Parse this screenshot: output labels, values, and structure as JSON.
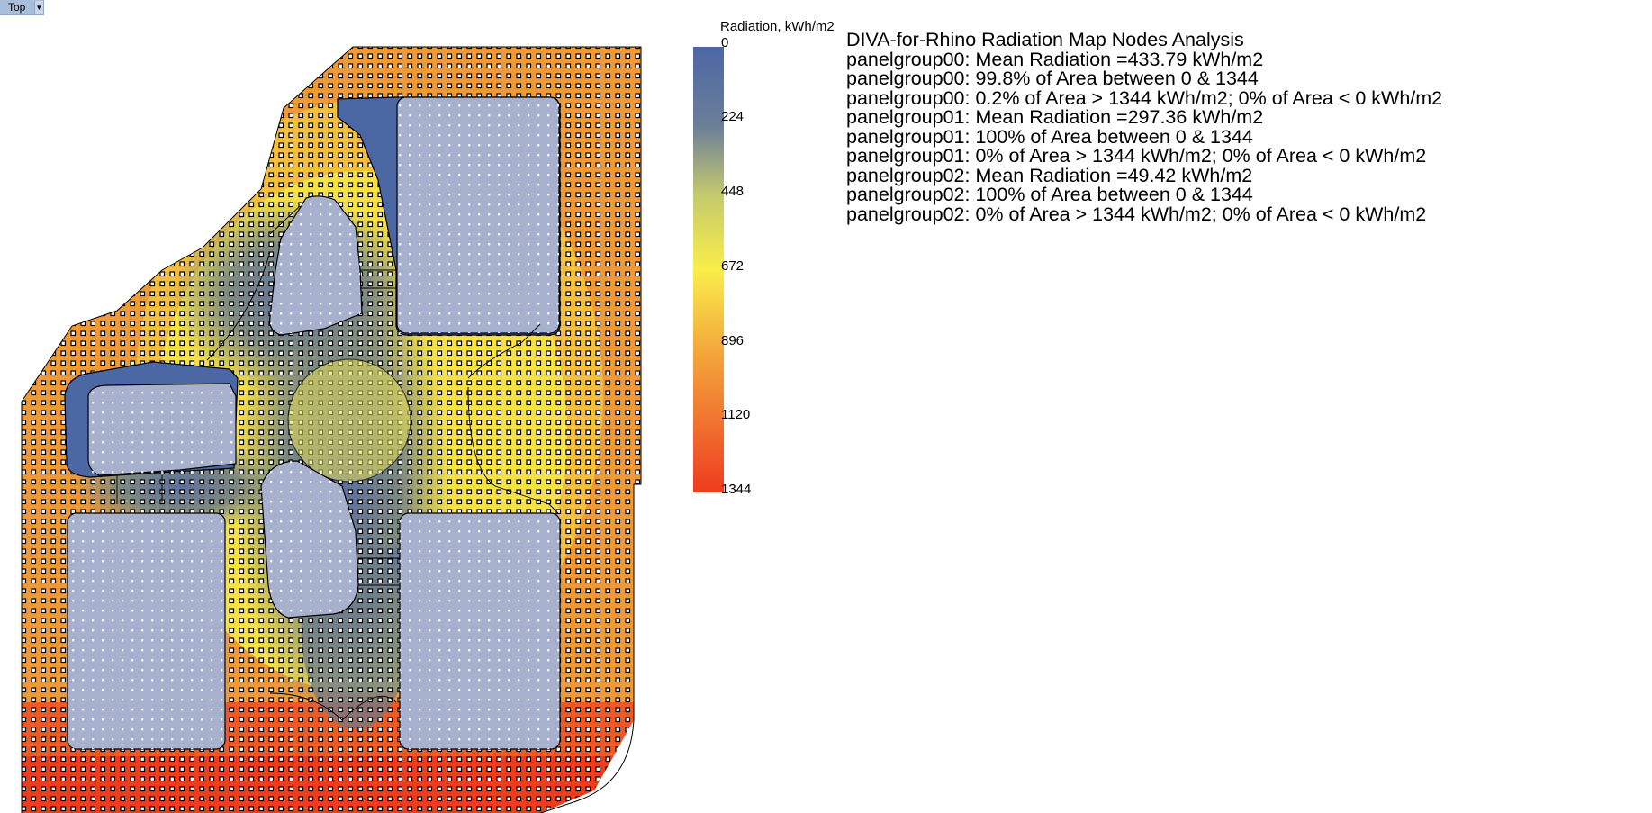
{
  "viewport": {
    "name": "Top",
    "menu_icon": "dropdown-arrow-icon"
  },
  "legend": {
    "title": "Radiation, kWh/m2",
    "ticks": [
      "0",
      "224",
      "448",
      "672",
      "896",
      "1120",
      "1344"
    ],
    "colors": {
      "low": "#4b67a4",
      "mid_low": "#7c8a7e",
      "mid": "#e2de47",
      "mid_high": "#f7ea44",
      "high_mid": "#f0a23a",
      "high": "#ee3b1e"
    }
  },
  "analysis": {
    "title": "DIVA-for-Rhino Radiation Map Nodes Analysis",
    "lines": [
      "panelgroup00: Mean Radiation =433.79 kWh/m2",
      "panelgroup00: 99.8% of Area between 0 & 1344",
      "panelgroup00: 0.2% of Area > 1344 kWh/m2; 0% of Area < 0 kWh/m2",
      "panelgroup01: Mean Radiation =297.36 kWh/m2",
      "panelgroup01: 100% of Area between 0 & 1344",
      "panelgroup01: 0% of Area > 1344 kWh/m2; 0% of Area < 0 kWh/m2",
      "panelgroup02: Mean Radiation =49.42 kWh/m2",
      "panelgroup02: 100% of Area between 0 & 1344",
      "panelgroup02: 0% of Area > 1344 kWh/m2; 0% of Area < 0 kWh/m2"
    ]
  },
  "map": {
    "panel_fill": "#a7b1cd",
    "node_fill": "#ffffff",
    "node_stroke": "#000000"
  }
}
